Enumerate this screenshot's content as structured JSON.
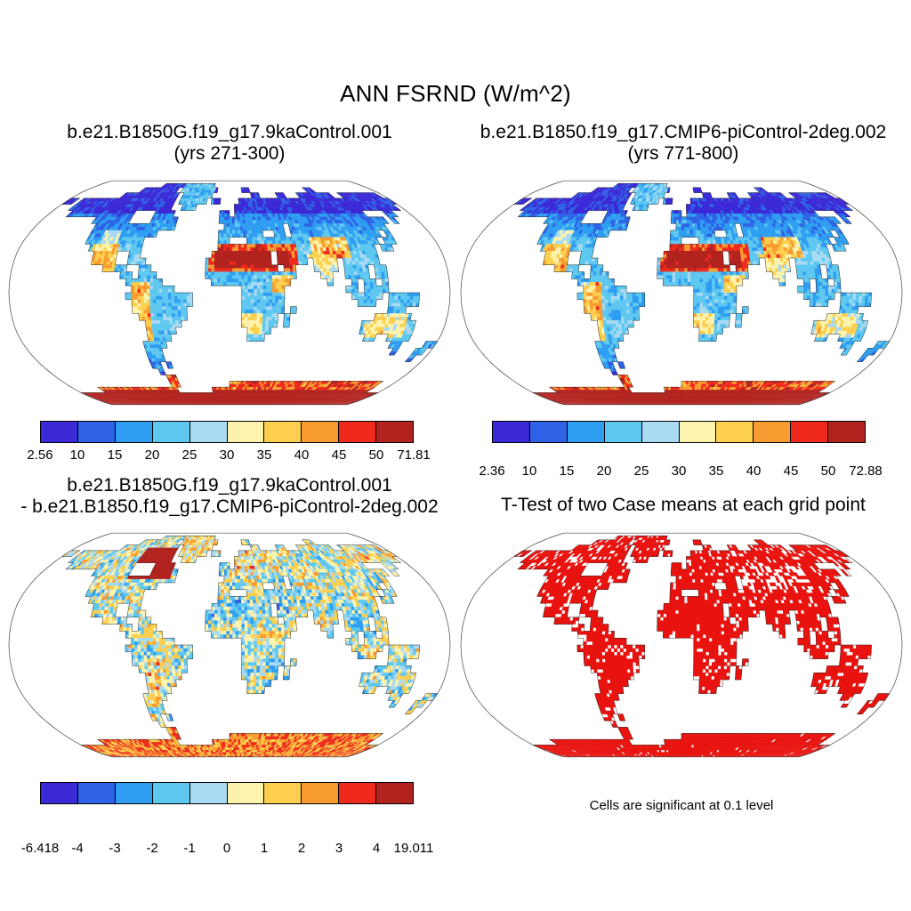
{
  "figure_title": "ANN FSRND (W/m^2)",
  "palette": [
    "#3b28d6",
    "#2f62e6",
    "#2f9ef2",
    "#5ec8f0",
    "#a8daf3",
    "#fdf3ad",
    "#fccf4e",
    "#f89c31",
    "#ef2a1d",
    "#b2231f"
  ],
  "map_style": {
    "coast_color": "#1a1a1a",
    "border_color": "#444444",
    "ocean_color": "#ffffff"
  },
  "panels": {
    "a": {
      "title": "b.e21.B1850G.f19_g17.9kaControl.001",
      "subtitle": "(yrs 271-300)",
      "ticks": [
        "2.56",
        "10",
        "15",
        "20",
        "25",
        "30",
        "35",
        "40",
        "45",
        "50",
        "71.81"
      ],
      "levels": [
        10,
        15,
        20,
        25,
        30,
        35,
        40,
        45,
        50
      ],
      "min": 2.56,
      "max": 71.81
    },
    "b": {
      "title": "b.e21.B1850.f19_g17.CMIP6-piControl-2deg.002",
      "subtitle": "(yrs 771-800)",
      "ticks": [
        "2.36",
        "10",
        "15",
        "20",
        "25",
        "30",
        "35",
        "40",
        "45",
        "50",
        "72.88"
      ],
      "levels": [
        10,
        15,
        20,
        25,
        30,
        35,
        40,
        45,
        50
      ],
      "min": 2.36,
      "max": 72.88
    },
    "c": {
      "title": "b.e21.B1850G.f19_g17.9kaControl.001",
      "subtitle": "- b.e21.B1850.f19_g17.CMIP6-piControl-2deg.002",
      "ticks": [
        "-6.418",
        "-4",
        "-3",
        "-2",
        "-1",
        "0",
        "1",
        "2",
        "3",
        "4",
        "19.011"
      ],
      "levels": [
        -4,
        -3,
        -2,
        -1,
        0,
        1,
        2,
        3,
        4
      ],
      "min": -6.418,
      "max": 19.011
    },
    "d": {
      "title": "T-Test of two Case means at each grid point",
      "caption": "Cells are significant at 0.1 level",
      "color": "#e8130f"
    }
  },
  "chart_data": [
    {
      "type": "heatmap",
      "projection": "robinson",
      "panel": "top-left",
      "title": "b.e21.B1850G.f19_g17.9kaControl.001",
      "subtitle": "(yrs 271-300)",
      "variable": "ANN FSRND",
      "units": "W/m^2",
      "levels": [
        10,
        15,
        20,
        25,
        30,
        35,
        40,
        45,
        50
      ],
      "min": 2.56,
      "max": 71.81,
      "legend_position": "bottom",
      "notes": "land-only field; high values over Sahara, Arabia and Antarctica (red), low values at high northern latitudes (dark blue)"
    },
    {
      "type": "heatmap",
      "projection": "robinson",
      "panel": "top-right",
      "title": "b.e21.B1850.f19_g17.CMIP6-piControl-2deg.002",
      "subtitle": "(yrs 771-800)",
      "variable": "ANN FSRND",
      "units": "W/m^2",
      "levels": [
        10,
        15,
        20,
        25,
        30,
        35,
        40,
        45,
        50
      ],
      "min": 2.36,
      "max": 72.88,
      "legend_position": "bottom",
      "notes": "pattern nearly identical to top-left panel"
    },
    {
      "type": "heatmap",
      "projection": "robinson",
      "panel": "bottom-left",
      "title": "b.e21.B1850G.f19_g17.9kaControl.001 - b.e21.B1850.f19_g17.CMIP6-piControl-2deg.002",
      "variable": "ANN FSRND difference",
      "units": "W/m^2",
      "levels": [
        -4,
        -3,
        -2,
        -1,
        0,
        1,
        2,
        3,
        4
      ],
      "min": -6.418,
      "max": 19.011,
      "legend_position": "bottom",
      "notes": "strong positive (dark red) anomaly over northeast Canada / Hudson Bay region; orange positive band over Antarctica; mottled small +/- elsewhere"
    },
    {
      "type": "heatmap",
      "projection": "robinson",
      "panel": "bottom-right",
      "title": "T-Test of two Case means at each grid point",
      "note": "Cells are significant at 0.1 level",
      "significance_level": 0.1,
      "notes": "significant land cells shown solid red with scattered non-significant white holes, largest holes over central Asia"
    }
  ],
  "landmask": [
    "000000000000000000000000000000000000000000000000000000000000000000000000",
    "000000000000000000111111111111110000000000000000000000000000000000000000",
    "000000000000001111111110111111111000000110000000000000011000000000000000",
    "000000000001111111111111011111110000000001100001100011111111001111111110",
    "110111111111111111111111011111101100001111111111111111111111111111111111",
    "000111111111111111111111001110000000011111111111111111111111111111111110",
    "000011111111111110000111100000000011011111111111111111111111111000011000",
    "000000000011111110000111110000000011111111111111111111111111111111010000",
    "000000000001111111111111110000000001111111111101111111111111111110000000",
    "000000000001111111111110000000000011111111001101111111111111111010000000",
    "000000000001111111111000000000000011000111111111111111111111110110000000",
    "000000000000111111111000000000000011111111111111111111111111101100000000",
    "000000000000011110011000000000000111111111101111111111111111100000000000",
    "000000000000011110011100000000001111111111101111101111011111100000000000",
    "000000000000000111100110000000001111111111110110001111011110110000000000",
    "000000000000000000110111000000001111111111111110000110011110110000000000",
    "000000000000000000011111100000000111111111111100000010001011010000000000",
    "000000000000000000001111111000000000001111111000000000011011110000000000",
    "000000000000000000011111111111000000001111111000000000001111101111100000",
    "000000000000000000001111111111000000001111111000000000000111001111100000",
    "000000000000000000001111111110000000001111111010000000000000001110000000",
    "000000000000000000000111111110000000001111110100000000000000111111000000",
    "000000000000000000000011111100000000001111110100000000000011111111100000",
    "000000000000000000000011111000000000000111100000000000000011111111100000",
    "000000000000000000000011110000000000000111000000000000000001100111100000",
    "000000000000000000000111100000000000000000000000000000000000000011000011",
    "000000000000000000000111000000000000000000000000000000000000000001000110",
    "000000000000000000000111000000000000000000000000000000000000000000000100",
    "000000000000000000000110100000000000000000000000000000000000000000000000",
    "000000000000000000000010000000000000000000000000000000000000000000000000",
    "000000000000000000000001100000000000000000000000000000000000000000000000",
    "000000000000000000000001100000000000111111111111111111111111111111111000",
    "000000111111111111111111000000001111111111111111111111111111111111111000",
    "111111111111111111111111111111111111111111111111111111111111111111111111",
    "111111111111111111111111111111111111111111111111111111111111111111111111",
    "111111111111111111111111111111111111111111111111111111111111111111111111"
  ]
}
